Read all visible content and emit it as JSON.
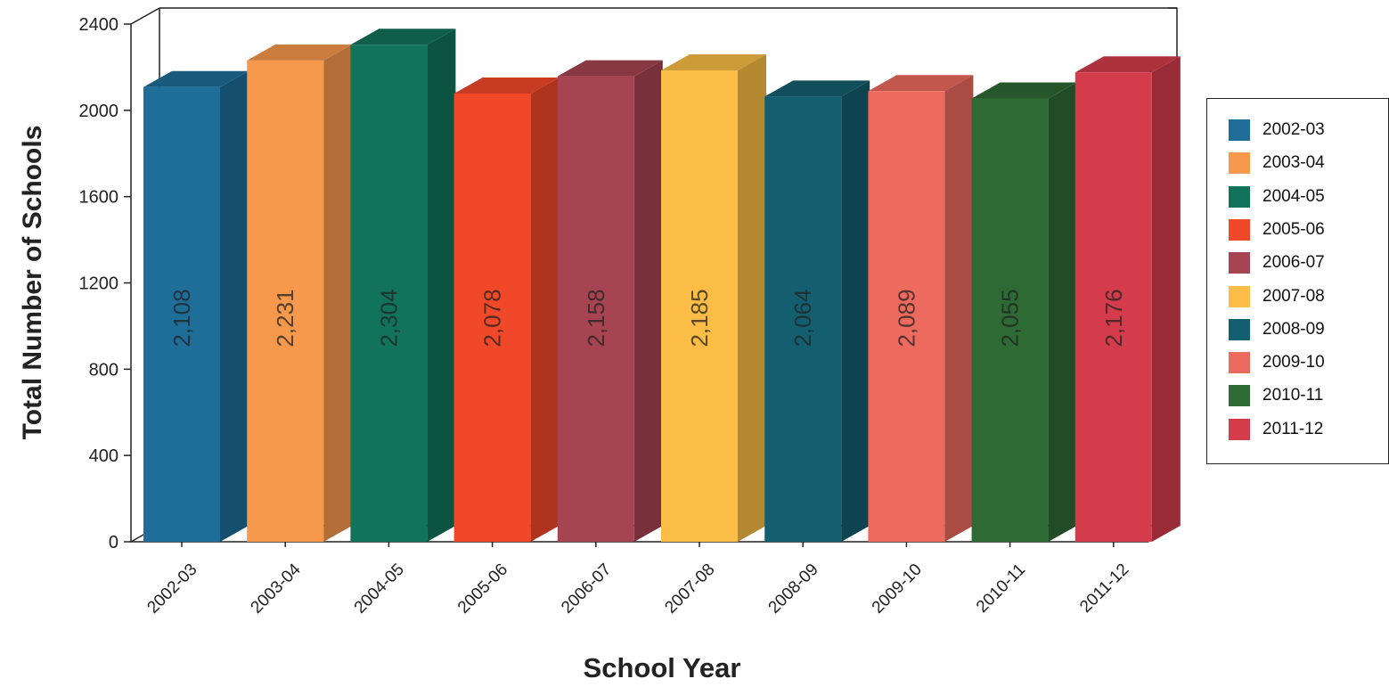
{
  "chart_data": {
    "type": "bar",
    "xlabel": "School Year",
    "ylabel": "Total Number of Schools",
    "ylim": [
      0,
      2400
    ],
    "yticks": [
      0,
      400,
      800,
      1200,
      1600,
      2000,
      2400
    ],
    "categories": [
      "2002-03",
      "2003-04",
      "2004-05",
      "2005-06",
      "2006-07",
      "2007-08",
      "2008-09",
      "2009-10",
      "2010-11",
      "2011-12"
    ],
    "values": [
      2108,
      2231,
      2304,
      2078,
      2158,
      2185,
      2064,
      2089,
      2055,
      2176
    ],
    "value_labels": [
      "2,108",
      "2,231",
      "2,304",
      "2,078",
      "2,158",
      "2,185",
      "2,064",
      "2,089",
      "2,055",
      "2,176"
    ],
    "colors": [
      "#1f6e99",
      "#f6994c",
      "#11735a",
      "#f2482a",
      "#a64451",
      "#fbbd45",
      "#145f6f",
      "#ed6a5e",
      "#2e6a34",
      "#d43c4c"
    ],
    "legend": {
      "position": "right",
      "entries": [
        "2002-03",
        "2003-04",
        "2004-05",
        "2005-06",
        "2006-07",
        "2007-08",
        "2008-09",
        "2009-10",
        "2010-11",
        "2011-12"
      ]
    },
    "grid": false,
    "style": "3d"
  }
}
